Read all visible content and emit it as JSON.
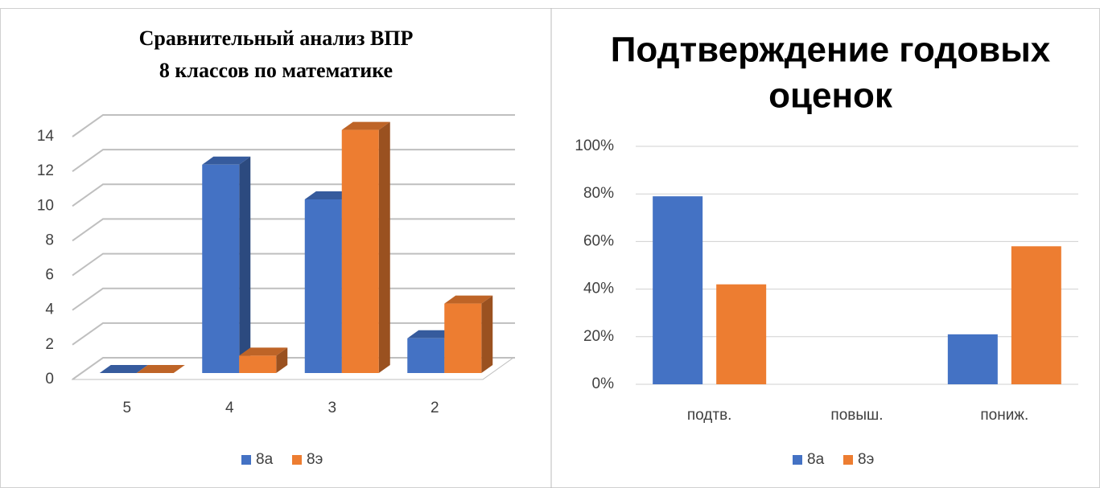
{
  "chart_data": [
    {
      "type": "bar3d",
      "title": [
        "Сравнительный  анализ ВПР",
        "8 классов по  математике"
      ],
      "categories": [
        "5",
        "4",
        "3",
        "2"
      ],
      "series": [
        {
          "name": "8а",
          "color": "#4472c4",
          "values": [
            0,
            12,
            10,
            2
          ]
        },
        {
          "name": "8э",
          "color": "#ed7d31",
          "values": [
            0,
            1,
            14,
            4
          ]
        }
      ],
      "ylim": [
        0,
        14
      ],
      "yticks": [
        0,
        2,
        4,
        6,
        8,
        10,
        12,
        14
      ],
      "grid": true,
      "legend": "bottom"
    },
    {
      "type": "bar",
      "title": [
        "Подтверждение годовых",
        "оценок"
      ],
      "categories": [
        "подтв.",
        "повыш.",
        "пониж."
      ],
      "series": [
        {
          "name": "8а",
          "color": "#4472c4",
          "values": [
            79,
            0,
            21
          ]
        },
        {
          "name": "8э",
          "color": "#ed7d31",
          "values": [
            42,
            0,
            58
          ]
        }
      ],
      "ylim": [
        0,
        100
      ],
      "yticks": [
        {
          "value": 0,
          "label": "0%"
        },
        {
          "value": 20,
          "label": "20%"
        },
        {
          "value": 40,
          "label": "40%"
        },
        {
          "value": 60,
          "label": "60%"
        },
        {
          "value": 80,
          "label": "80%"
        },
        {
          "value": 100,
          "label": "100%"
        }
      ],
      "grid": true,
      "legend": "bottom"
    }
  ]
}
